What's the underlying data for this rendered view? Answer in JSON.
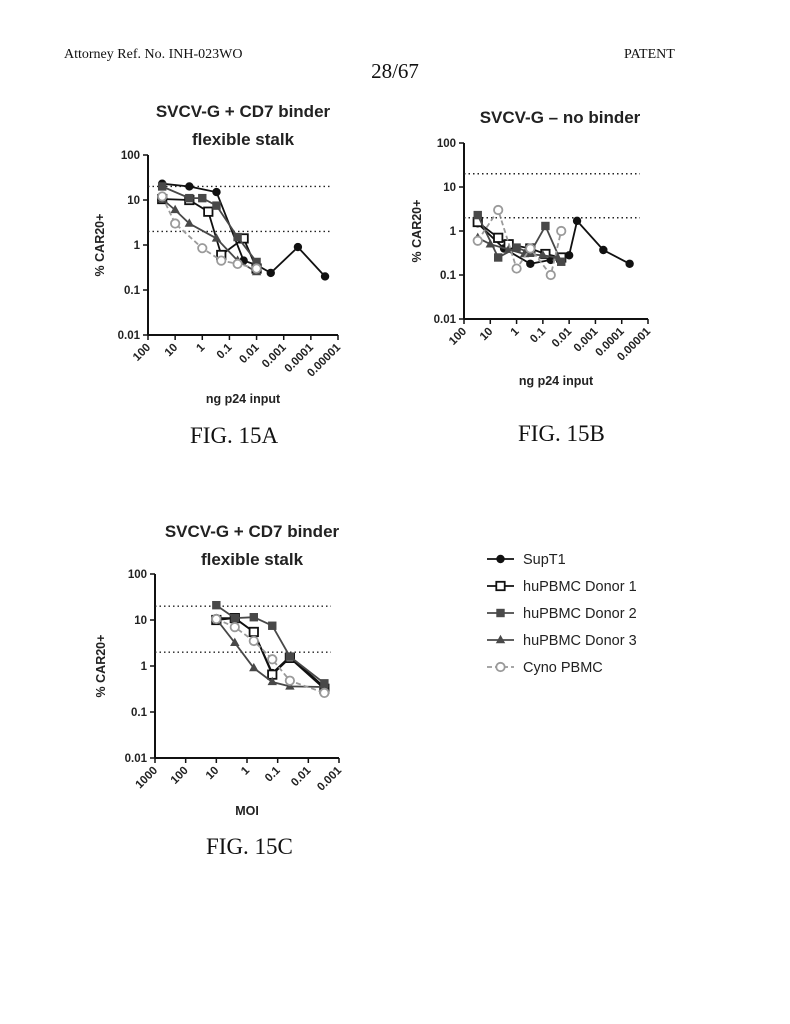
{
  "header": {
    "ref": "Attorney Ref. No. INH-023WO",
    "page": "28/67",
    "label": "PATENT"
  },
  "legend": {
    "entries": [
      "SupT1",
      "huPBMC Donor 1",
      "huPBMC Donor 2",
      "huPBMC Donor 3",
      "Cyno PBMC"
    ],
    "colors": [
      "#111111",
      "#111111",
      "#4a4a4a",
      "#4a4a4a",
      "#9a9a9a"
    ],
    "markers": [
      "circle",
      "open-square",
      "square",
      "triangle",
      "open-circle"
    ]
  },
  "chart_data": [
    {
      "id": "fig15a",
      "caption": "FIG. 15A",
      "type": "line",
      "title": [
        "SVCV-G + CD7 binder",
        "flexible stalk"
      ],
      "xlabel": "ng p24 input",
      "ylabel": "% CAR20+",
      "x_scale": "log-reversed",
      "x_ticks": [
        "100",
        "10",
        "1",
        "0.1",
        "0.01",
        "0.001",
        "0.0001",
        "0.00001"
      ],
      "y_ticks": [
        "0.01",
        "0.1",
        "1",
        "10",
        "100"
      ],
      "ylim": [
        0.01,
        100
      ],
      "reference_lines": [
        20,
        2
      ],
      "series": [
        {
          "name": "SupT1",
          "x": [
            30,
            3,
            0.3,
            0.03,
            0.01,
            0.003,
            0.0003,
            3e-05
          ],
          "y": [
            23,
            20,
            15,
            0.45,
            0.36,
            0.24,
            0.9,
            0.2
          ]
        },
        {
          "name": "huPBMC Donor 1",
          "x": [
            30,
            3,
            0.6,
            0.2,
            0.03,
            0.01
          ],
          "y": [
            10.5,
            10,
            5.5,
            0.6,
            1.4,
            0.3
          ]
        },
        {
          "name": "huPBMC Donor 2",
          "x": [
            30,
            3,
            1,
            0.3,
            0.05,
            0.01
          ],
          "y": [
            20,
            11,
            11,
            7.5,
            1.5,
            0.42
          ]
        },
        {
          "name": "huPBMC Donor 3",
          "x": [
            30,
            10,
            3,
            0.3,
            0.05,
            0.01
          ],
          "y": [
            10.5,
            6,
            3,
            1.4,
            0.45,
            0.25
          ]
        },
        {
          "name": "Cyno PBMC",
          "x": [
            30,
            10,
            1,
            0.2,
            0.05,
            0.01
          ],
          "y": [
            12,
            3,
            0.85,
            0.45,
            0.38,
            0.3
          ]
        }
      ]
    },
    {
      "id": "fig15b",
      "caption": "FIG. 15B",
      "type": "line",
      "title": [
        "SVCV-G – no binder"
      ],
      "xlabel": "ng p24 input",
      "ylabel": "% CAR20+",
      "x_scale": "log-reversed",
      "x_ticks": [
        "100",
        "10",
        "1",
        "0.1",
        "0.01",
        "0.001",
        "0.0001",
        "0.00001"
      ],
      "y_ticks": [
        "0.01",
        "0.1",
        "1",
        "10",
        "100"
      ],
      "ylim": [
        0.01,
        100
      ],
      "reference_lines": [
        20,
        2
      ],
      "series": [
        {
          "name": "SupT1",
          "x": [
            30,
            3,
            0.3,
            0.05,
            0.01,
            0.005,
            0.0005,
            5e-05
          ],
          "y": [
            1.5,
            0.4,
            0.18,
            0.22,
            0.28,
            1.7,
            0.37,
            0.18
          ]
        },
        {
          "name": "huPBMC Donor 1",
          "x": [
            30,
            5,
            2,
            0.3,
            0.08,
            0.02
          ],
          "y": [
            1.6,
            0.7,
            0.5,
            0.4,
            0.3,
            0.25
          ]
        },
        {
          "name": "huPBMC Donor 2",
          "x": [
            30,
            5,
            1,
            0.3,
            0.08,
            0.02
          ],
          "y": [
            2.3,
            0.25,
            0.42,
            0.32,
            1.3,
            0.2
          ]
        },
        {
          "name": "huPBMC Donor 3",
          "x": [
            30,
            10,
            2,
            0.5,
            0.1,
            0.03
          ],
          "y": [
            0.7,
            0.5,
            0.38,
            0.3,
            0.28,
            0.25
          ]
        },
        {
          "name": "Cyno PBMC",
          "x": [
            30,
            5,
            1,
            0.3,
            0.05,
            0.02
          ],
          "y": [
            0.6,
            3,
            0.14,
            0.4,
            0.1,
            1
          ]
        }
      ]
    },
    {
      "id": "fig15c",
      "caption": "FIG. 15C",
      "type": "line",
      "title": [
        "SVCV-G + CD7 binder",
        "flexible stalk"
      ],
      "xlabel": "MOI",
      "ylabel": "% CAR20+",
      "x_scale": "log-reversed",
      "x_ticks": [
        "1000",
        "100",
        "10",
        "1",
        "0.1",
        "0.01",
        "0.001"
      ],
      "y_ticks": [
        "0.01",
        "0.1",
        "1",
        "10",
        "100"
      ],
      "ylim": [
        0.01,
        100
      ],
      "reference_lines": [
        20,
        2
      ],
      "series": [
        {
          "name": "SupT1",
          "x": [
            10,
            2.5,
            0.6,
            0.15,
            0.04,
            0.003
          ],
          "y": [
            11,
            11,
            5.5,
            0.7,
            1.6,
            0.35
          ]
        },
        {
          "name": "huPBMC Donor 1",
          "x": [
            10,
            2.5,
            0.6,
            0.15,
            0.04,
            0.003
          ],
          "y": [
            10,
            11,
            5.5,
            0.65,
            1.5,
            0.32
          ]
        },
        {
          "name": "huPBMC Donor 2",
          "x": [
            10,
            2.5,
            0.6,
            0.15,
            0.04,
            0.003
          ],
          "y": [
            21,
            11,
            11.5,
            7.5,
            1.6,
            0.42
          ]
        },
        {
          "name": "huPBMC Donor 3",
          "x": [
            10,
            2.5,
            0.6,
            0.15,
            0.04,
            0.003
          ],
          "y": [
            10.5,
            3.2,
            0.9,
            0.45,
            0.36,
            0.35
          ]
        },
        {
          "name": "Cyno PBMC",
          "x": [
            10,
            2.5,
            0.6,
            0.15,
            0.04,
            0.003
          ],
          "y": [
            10.5,
            7,
            3.5,
            1.4,
            0.48,
            0.26
          ]
        }
      ]
    }
  ]
}
